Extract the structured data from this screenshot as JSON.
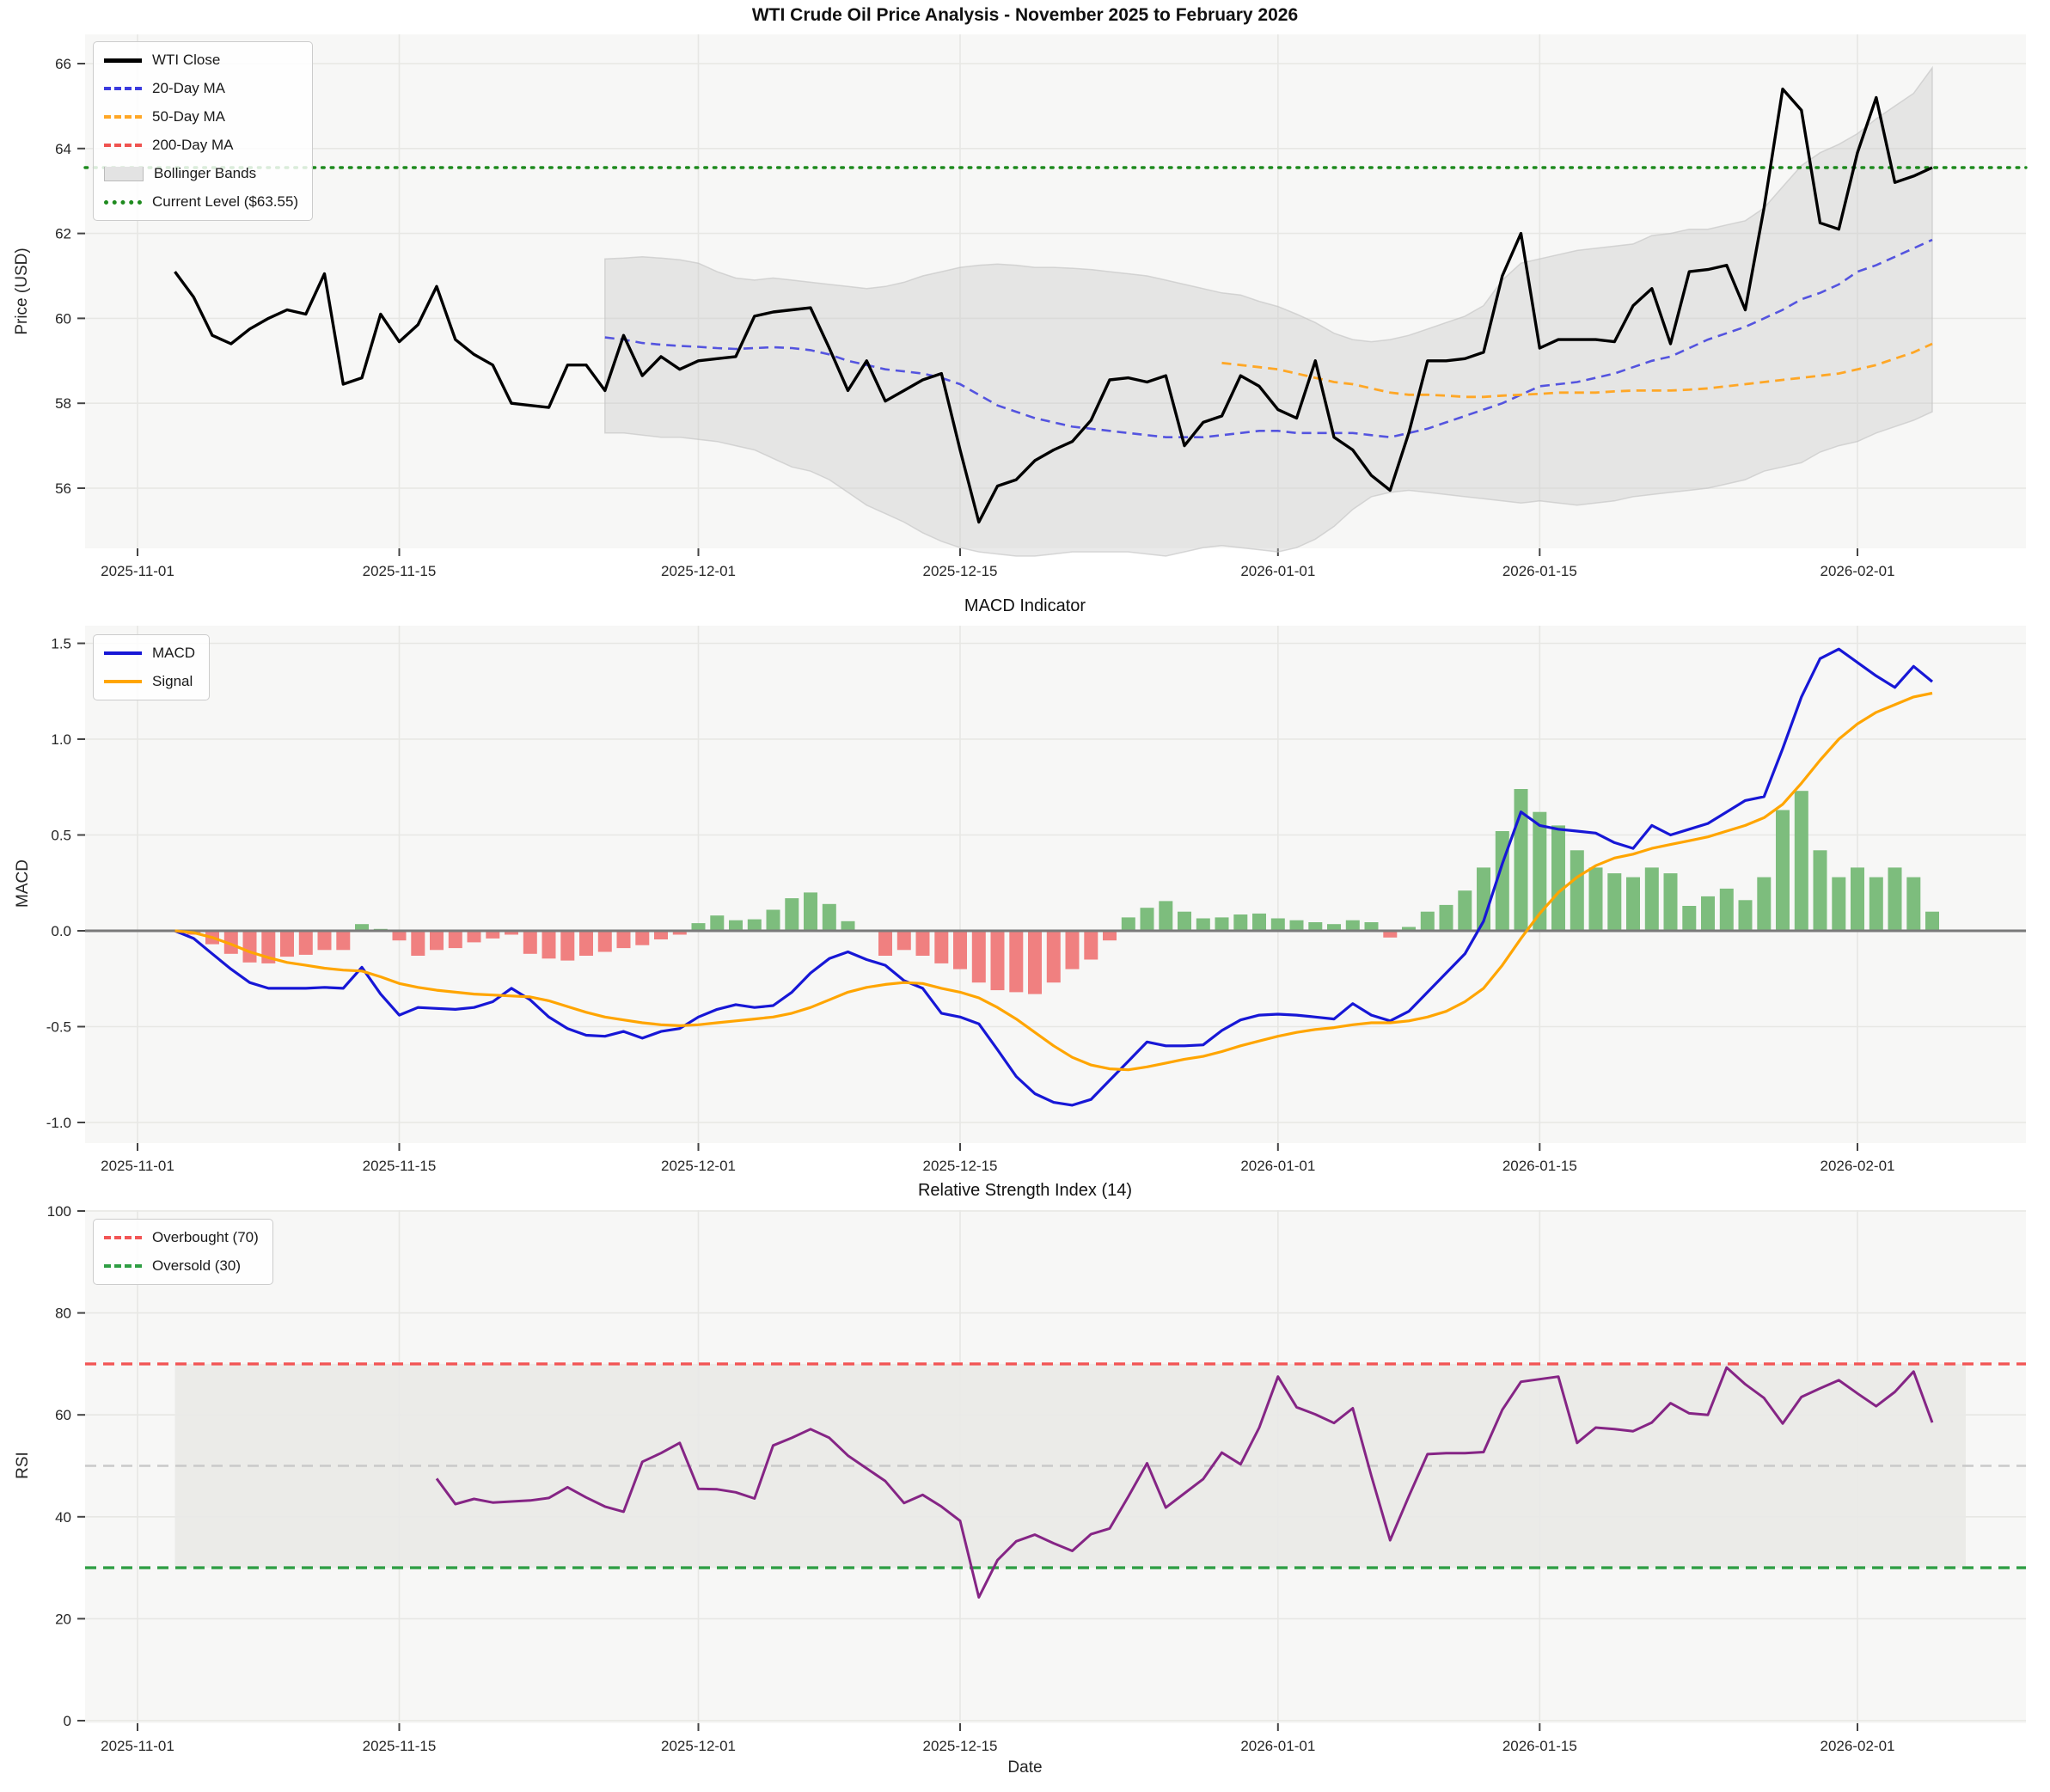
{
  "title": "WTI Crude Oil Price Analysis - November 2025 to February 2026",
  "panels": {
    "price": {
      "ylabel": "Price (USD)",
      "yticks": [
        56,
        58,
        60,
        62,
        64,
        66
      ],
      "legend": [
        {
          "label": "WTI Close",
          "color": "#000000",
          "style": "solid"
        },
        {
          "label": "20-Day MA",
          "color": "#3b3bde",
          "style": "dashed"
        },
        {
          "label": "50-Day MA",
          "color": "#ffa726",
          "style": "dashed"
        },
        {
          "label": "200-Day MA",
          "color": "#ef5350",
          "style": "dashed"
        },
        {
          "label": "Bollinger Bands",
          "color": "#dddddd",
          "style": "patch"
        },
        {
          "label": "Current Level ($63.55)",
          "color": "#1e8a1e",
          "style": "dotted"
        }
      ],
      "current_level": 63.55
    },
    "macd": {
      "title": "MACD Indicator",
      "ylabel": "MACD",
      "yticks": [
        -1.0,
        -0.5,
        0.0,
        0.5,
        1.0,
        1.5
      ],
      "legend": [
        {
          "label": "MACD",
          "color": "#1717d6",
          "style": "solid"
        },
        {
          "label": "Signal",
          "color": "#ffa500",
          "style": "solid"
        }
      ]
    },
    "rsi": {
      "title": "Relative Strength Index (14)",
      "ylabel": "RSI",
      "xlabel": "Date",
      "yticks": [
        0,
        20,
        40,
        60,
        80,
        100
      ],
      "legend": [
        {
          "label": "Overbought (70)",
          "color": "#f25555",
          "style": "dashed"
        },
        {
          "label": "Oversold (30)",
          "color": "#2f9e44",
          "style": "dashed"
        }
      ],
      "overbought": 70,
      "oversold": 30,
      "midline": 50
    }
  },
  "xticks": [
    {
      "offset": 0,
      "label": "2025-11-01"
    },
    {
      "offset": 14,
      "label": "2025-11-15"
    },
    {
      "offset": 30,
      "label": "2025-12-01"
    },
    {
      "offset": 44,
      "label": "2025-12-15"
    },
    {
      "offset": 61,
      "label": "2026-01-01"
    },
    {
      "offset": 75,
      "label": "2026-01-15"
    },
    {
      "offset": 92,
      "label": "2026-02-01"
    }
  ],
  "chart_data": [
    {
      "panel": "price",
      "type": "line",
      "title": "WTI Crude Oil Price Analysis - November 2025 to February 2026",
      "ylabel": "Price (USD)",
      "ylim": [
        54.6,
        66.7
      ],
      "x_origin": "2025-11-01",
      "data_start_date": "2025-11-03",
      "data_end_date": "2026-02-05",
      "hlines": [
        {
          "name": "Current Level",
          "value": 63.55,
          "color": "#1e8a1e",
          "style": "dotted"
        }
      ],
      "series": [
        {
          "name": "WTI Close",
          "start_offset": 2,
          "color": "#000000",
          "style": "solid",
          "values": [
            61.1,
            60.5,
            59.6,
            59.4,
            59.75,
            60.0,
            60.2,
            60.1,
            61.05,
            58.45,
            58.6,
            60.1,
            59.45,
            59.85,
            60.75,
            59.5,
            59.15,
            58.9,
            58.0,
            57.95,
            57.9,
            58.9,
            58.9,
            58.3,
            59.6,
            58.65,
            59.1,
            58.8,
            59.0,
            59.05,
            59.1,
            60.05,
            60.15,
            60.2,
            60.25,
            59.3,
            58.3,
            59.0,
            58.05,
            58.3,
            58.55,
            58.7,
            56.9,
            55.2,
            56.05,
            56.2,
            56.65,
            56.9,
            57.1,
            57.6,
            58.55,
            58.6,
            58.5,
            58.65,
            57.0,
            57.55,
            57.7,
            58.65,
            58.4,
            57.85,
            57.65,
            59.0,
            57.2,
            56.9,
            56.3,
            55.95,
            57.3,
            59.0,
            59.0,
            59.05,
            59.2,
            61.0,
            62.0,
            59.3,
            59.5,
            59.5,
            59.5,
            59.45,
            60.3,
            60.7,
            59.4,
            61.1,
            61.15,
            61.25,
            60.2,
            62.6,
            65.4,
            64.9,
            62.25,
            62.1,
            63.9,
            65.2,
            63.2,
            63.35,
            63.55
          ]
        },
        {
          "name": "20-Day MA",
          "start_offset": 25,
          "color": "#3b3bde",
          "style": "dashed",
          "values": [
            59.55,
            59.5,
            59.42,
            59.38,
            59.35,
            59.33,
            59.3,
            59.28,
            59.3,
            59.32,
            59.3,
            59.25,
            59.15,
            59.0,
            58.9,
            58.8,
            58.75,
            58.7,
            58.6,
            58.45,
            58.2,
            57.95,
            57.8,
            57.65,
            57.55,
            57.45,
            57.4,
            57.35,
            57.3,
            57.25,
            57.2,
            57.2,
            57.2,
            57.25,
            57.3,
            57.35,
            57.35,
            57.3,
            57.3,
            57.3,
            57.3,
            57.25,
            57.2,
            57.3,
            57.4,
            57.55,
            57.7,
            57.85,
            58.0,
            58.2,
            58.4,
            58.45,
            58.5,
            58.6,
            58.7,
            58.85,
            59.0,
            59.1,
            59.3,
            59.5,
            59.65,
            59.8,
            60.0,
            60.2,
            60.45,
            60.6,
            60.8,
            61.1,
            61.25,
            61.45,
            61.65,
            61.85
          ]
        },
        {
          "name": "50-Day MA",
          "start_offset": 58,
          "color": "#ffa726",
          "style": "dashed",
          "values": [
            58.95,
            58.9,
            58.85,
            58.8,
            58.7,
            58.6,
            58.5,
            58.45,
            58.35,
            58.25,
            58.2,
            58.2,
            58.18,
            58.15,
            58.15,
            58.18,
            58.2,
            58.22,
            58.25,
            58.25,
            58.25,
            58.28,
            58.3,
            58.3,
            58.3,
            58.32,
            58.35,
            58.4,
            58.45,
            58.5,
            58.55,
            58.6,
            58.65,
            58.7,
            58.8,
            58.9,
            59.05,
            59.2,
            59.4
          ]
        },
        {
          "name": "200-Day MA",
          "start_offset": null,
          "color": "#ef5350",
          "style": "dashed",
          "values": []
        },
        {
          "name": "Bollinger Upper",
          "start_offset": 25,
          "color": "#cccccc",
          "style": "band-edge",
          "values": [
            61.4,
            61.42,
            61.45,
            61.42,
            61.38,
            61.3,
            61.1,
            60.95,
            60.9,
            60.95,
            60.9,
            60.85,
            60.8,
            60.75,
            60.7,
            60.75,
            60.85,
            61.0,
            61.1,
            61.2,
            61.25,
            61.28,
            61.25,
            61.2,
            61.2,
            61.18,
            61.15,
            61.1,
            61.05,
            61.0,
            60.9,
            60.8,
            60.7,
            60.6,
            60.55,
            60.4,
            60.28,
            60.1,
            59.9,
            59.65,
            59.5,
            59.45,
            59.5,
            59.6,
            59.75,
            59.9,
            60.05,
            60.3,
            60.9,
            61.3,
            61.4,
            61.5,
            61.6,
            61.65,
            61.7,
            61.75,
            61.95,
            62.0,
            62.1,
            62.1,
            62.2,
            62.3,
            62.6,
            63.1,
            63.6,
            63.9,
            64.1,
            64.35,
            64.7,
            65.0,
            65.3,
            65.9
          ]
        },
        {
          "name": "Bollinger Lower",
          "start_offset": 25,
          "color": "#cccccc",
          "style": "band-edge",
          "values": [
            57.3,
            57.3,
            57.25,
            57.2,
            57.2,
            57.15,
            57.1,
            57.0,
            56.9,
            56.7,
            56.5,
            56.4,
            56.2,
            55.9,
            55.6,
            55.4,
            55.2,
            54.95,
            54.75,
            54.6,
            54.5,
            54.45,
            54.4,
            54.4,
            54.45,
            54.5,
            54.5,
            54.5,
            54.5,
            54.45,
            54.4,
            54.5,
            54.6,
            54.65,
            54.6,
            54.55,
            54.5,
            54.6,
            54.8,
            55.1,
            55.5,
            55.8,
            55.9,
            55.95,
            55.9,
            55.85,
            55.8,
            55.75,
            55.7,
            55.65,
            55.7,
            55.65,
            55.6,
            55.65,
            55.7,
            55.8,
            55.85,
            55.9,
            55.95,
            56.0,
            56.1,
            56.2,
            56.4,
            56.5,
            56.6,
            56.85,
            57.0,
            57.1,
            57.3,
            57.45,
            57.6,
            57.8
          ]
        }
      ]
    },
    {
      "panel": "macd",
      "type": "line+bar",
      "title": "MACD Indicator",
      "ylabel": "MACD",
      "ylim": [
        -1.1,
        1.59
      ],
      "series": [
        {
          "name": "MACD",
          "start_offset": 2,
          "color": "#1717d6",
          "style": "solid",
          "values": [
            0.0,
            -0.04,
            -0.12,
            -0.2,
            -0.27,
            -0.3,
            -0.3,
            -0.3,
            -0.295,
            -0.3,
            -0.19,
            -0.33,
            -0.44,
            -0.4,
            -0.405,
            -0.41,
            -0.4,
            -0.37,
            -0.3,
            -0.36,
            -0.45,
            -0.51,
            -0.545,
            -0.55,
            -0.525,
            -0.56,
            -0.525,
            -0.51,
            -0.45,
            -0.41,
            -0.385,
            -0.4,
            -0.39,
            -0.32,
            -0.22,
            -0.145,
            -0.11,
            -0.15,
            -0.18,
            -0.26,
            -0.3,
            -0.43,
            -0.45,
            -0.485,
            -0.62,
            -0.76,
            -0.85,
            -0.895,
            -0.91,
            -0.88,
            -0.78,
            -0.68,
            -0.58,
            -0.6,
            -0.6,
            -0.595,
            -0.52,
            -0.465,
            -0.44,
            -0.435,
            -0.44,
            -0.45,
            -0.46,
            -0.38,
            -0.44,
            -0.47,
            -0.42,
            -0.32,
            -0.22,
            -0.12,
            0.05,
            0.35,
            0.62,
            0.55,
            0.53,
            0.52,
            0.51,
            0.46,
            0.43,
            0.55,
            0.5,
            0.53,
            0.56,
            0.62,
            0.68,
            0.7,
            0.95,
            1.22,
            1.42,
            1.47,
            1.4,
            1.33,
            1.27,
            1.38,
            1.3
          ]
        },
        {
          "name": "Signal",
          "start_offset": 2,
          "color": "#ffa500",
          "style": "solid",
          "values": [
            0.0,
            -0.01,
            -0.035,
            -0.07,
            -0.11,
            -0.14,
            -0.165,
            -0.18,
            -0.195,
            -0.205,
            -0.21,
            -0.24,
            -0.275,
            -0.295,
            -0.31,
            -0.32,
            -0.33,
            -0.335,
            -0.34,
            -0.345,
            -0.365,
            -0.395,
            -0.425,
            -0.45,
            -0.465,
            -0.48,
            -0.49,
            -0.495,
            -0.49,
            -0.48,
            -0.47,
            -0.46,
            -0.45,
            -0.43,
            -0.4,
            -0.36,
            -0.32,
            -0.295,
            -0.28,
            -0.27,
            -0.275,
            -0.3,
            -0.32,
            -0.35,
            -0.4,
            -0.46,
            -0.53,
            -0.6,
            -0.66,
            -0.7,
            -0.72,
            -0.725,
            -0.71,
            -0.69,
            -0.67,
            -0.655,
            -0.63,
            -0.6,
            -0.575,
            -0.55,
            -0.53,
            -0.515,
            -0.505,
            -0.49,
            -0.48,
            -0.48,
            -0.47,
            -0.45,
            -0.42,
            -0.37,
            -0.3,
            -0.18,
            -0.04,
            0.09,
            0.2,
            0.28,
            0.34,
            0.38,
            0.4,
            0.43,
            0.45,
            0.47,
            0.49,
            0.52,
            0.55,
            0.59,
            0.66,
            0.77,
            0.89,
            1.0,
            1.08,
            1.14,
            1.18,
            1.22,
            1.24
          ]
        },
        {
          "name": "Histogram",
          "start_offset": 2,
          "type": "bar",
          "pos_color": "#7dbd7d",
          "neg_color": "#f08080",
          "values": [
            0.0,
            -0.02,
            -0.07,
            -0.12,
            -0.165,
            -0.17,
            -0.135,
            -0.125,
            -0.1,
            -0.1,
            0.035,
            0.01,
            -0.05,
            -0.13,
            -0.1,
            -0.09,
            -0.06,
            -0.04,
            -0.02,
            -0.12,
            -0.145,
            -0.155,
            -0.13,
            -0.11,
            -0.09,
            -0.075,
            -0.045,
            -0.02,
            0.04,
            0.08,
            0.055,
            0.06,
            0.11,
            0.17,
            0.2,
            0.14,
            0.05,
            -0.005,
            -0.13,
            -0.1,
            -0.13,
            -0.17,
            -0.2,
            -0.27,
            -0.31,
            -0.32,
            -0.33,
            -0.27,
            -0.2,
            -0.15,
            -0.05,
            0.07,
            0.12,
            0.155,
            0.1,
            0.065,
            0.07,
            0.085,
            0.09,
            0.065,
            0.055,
            0.045,
            0.035,
            0.055,
            0.045,
            -0.035,
            0.02,
            0.1,
            0.135,
            0.21,
            0.33,
            0.52,
            0.74,
            0.62,
            0.55,
            0.42,
            0.33,
            0.3,
            0.28,
            0.33,
            0.3,
            0.13,
            0.18,
            0.22,
            0.16,
            0.28,
            0.63,
            0.73,
            0.42,
            0.28,
            0.33,
            0.28,
            0.33,
            0.28,
            0.1
          ]
        }
      ]
    },
    {
      "panel": "rsi",
      "type": "line",
      "title": "Relative Strength Index (14)",
      "ylabel": "RSI",
      "xlabel": "Date",
      "ylim": [
        0,
        100
      ],
      "hlines": [
        {
          "name": "Overbought",
          "value": 70,
          "color": "#f25555",
          "style": "dashed"
        },
        {
          "name": "Midline",
          "value": 50,
          "color": "#c9c9c9",
          "style": "dashed"
        },
        {
          "name": "Oversold",
          "value": 30,
          "color": "#2f9e44",
          "style": "dashed"
        }
      ],
      "band": {
        "from": 30,
        "to": 70,
        "color": "#e9e9e7"
      },
      "series": [
        {
          "name": "RSI",
          "start_offset": 16,
          "color": "#852585",
          "style": "solid",
          "values": [
            47.5,
            42.5,
            43.5,
            42.8,
            43.0,
            43.2,
            43.7,
            45.8,
            43.8,
            42.0,
            41.0,
            50.8,
            52.5,
            54.5,
            45.5,
            45.4,
            44.8,
            43.6,
            54.0,
            55.5,
            57.2,
            55.5,
            52.0,
            49.5,
            47.0,
            42.7,
            44.3,
            42.0,
            39.2,
            24.2,
            31.5,
            35.2,
            36.5,
            34.8,
            33.3,
            36.6,
            37.7,
            44.0,
            50.5,
            41.8,
            44.6,
            47.4,
            52.6,
            50.3,
            57.5,
            67.5,
            61.5,
            60.1,
            58.4,
            61.3,
            48.0,
            35.4,
            44.0,
            52.3,
            52.5,
            52.5,
            52.7,
            61.0,
            66.5,
            67.0,
            67.5,
            54.5,
            57.5,
            57.2,
            56.8,
            58.5,
            62.3,
            60.3,
            60.0,
            69.3,
            66.0,
            63.3,
            58.3,
            63.5,
            65.2,
            66.8,
            64.2,
            61.7,
            64.5,
            68.5,
            58.5
          ]
        }
      ]
    }
  ]
}
